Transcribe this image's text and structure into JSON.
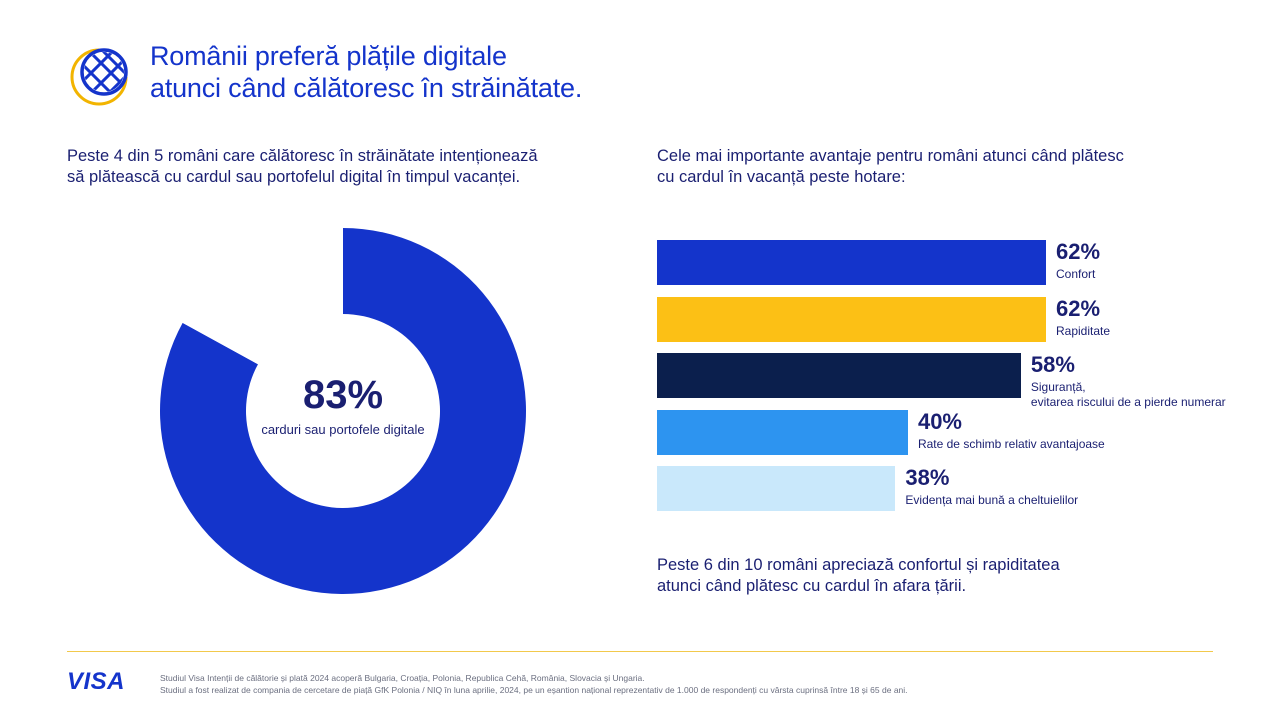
{
  "header": {
    "title_line1": "Românii preferă plățile digitale",
    "title_line2": "atunci când călătoresc în străinătate."
  },
  "left": {
    "subhead_line1": "Peste 4 din 5 români care călătoresc în străinătate intenționează",
    "subhead_line2": "să plătească cu cardul sau portofelul digital în timpul vacanței."
  },
  "right": {
    "subhead_line1": "Cele mai importante avantaje pentru români atunci când plătesc",
    "subhead_line2": "cu cardul în vacanță peste hotare:",
    "note_line1": "Peste 6 din 10 români apreciază confortul și rapiditatea",
    "note_line2": "atunci când plătesc cu cardul în afara țării."
  },
  "colors": {
    "donut_fill": "#1434cb",
    "title": "#1434cb",
    "text": "#1a1f71",
    "accent_gold": "#f2c94c"
  },
  "chart_data": [
    {
      "type": "pie",
      "slices": [
        {
          "label": "carduri sau portofele digitale",
          "value": 83,
          "color": "#1434cb"
        },
        {
          "label": "",
          "value": 17,
          "color": "#ffffff"
        }
      ],
      "center_value": "83%",
      "center_caption": "carduri sau portofele digitale"
    },
    {
      "type": "bar",
      "orientation": "horizontal",
      "categories": [
        "Confort",
        "Rapiditate",
        "Siguranță, evitarea riscului de a pierde numerar",
        "Rate de schimb relativ avantajoase",
        "Evidența mai bună a cheltuielilor"
      ],
      "values": [
        62,
        62,
        58,
        40,
        38
      ],
      "value_labels": [
        "62%",
        "62%",
        "58%",
        "40%",
        "38%"
      ],
      "label_lines": [
        [
          "Confort"
        ],
        [
          "Rapiditate"
        ],
        [
          "Siguranță,",
          "evitarea riscului de a pierde numerar"
        ],
        [
          "Rate de schimb relativ avantajoase"
        ],
        [
          "Evidența mai bună a cheltuielilor"
        ]
      ],
      "colors": [
        "#1434cb",
        "#fcc015",
        "#0b1f4d",
        "#2d94f0",
        "#c9e8fb"
      ],
      "xlim": [
        0,
        62
      ]
    }
  ],
  "footer": {
    "logo": "VISA",
    "footnote_line1": "Studiul Visa Intenții de călătorie și plată 2024 acoperă Bulgaria, Croația, Polonia, Republica Cehă, România, Slovacia și Ungaria.",
    "footnote_line2": "Studiul a fost realizat de compania de cercetare de piață GfK Polonia / NIQ în luna aprilie, 2024, pe un eșantion național reprezentativ de 1.000 de respondenți cu vârsta cuprinsă între 18 și 65 de ani."
  }
}
